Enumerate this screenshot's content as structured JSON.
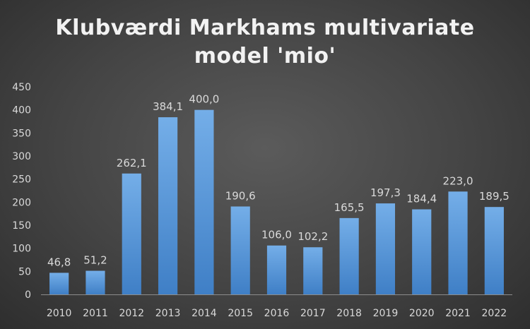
{
  "chart_data": {
    "type": "bar",
    "title_lines": [
      "Klubværdi Markhams multivariate",
      "model 'mio'"
    ],
    "categories": [
      "2010",
      "2011",
      "2012",
      "2013",
      "2014",
      "2015",
      "2016",
      "2017",
      "2018",
      "2019",
      "2020",
      "2021",
      "2022"
    ],
    "values": [
      46.8,
      51.2,
      262.1,
      384.1,
      400.0,
      190.6,
      106.0,
      102.2,
      165.5,
      197.3,
      184.4,
      223.0,
      189.5
    ],
    "data_labels": [
      "46,8",
      "51,2",
      "262,1",
      "384,1",
      "400,0",
      "190,6",
      "106,0",
      "102,2",
      "165,5",
      "197,3",
      "184,4",
      "223,0",
      "189,5"
    ],
    "y_ticks": [
      0,
      50,
      100,
      150,
      200,
      250,
      300,
      350,
      400,
      450
    ],
    "ylim": [
      0,
      450
    ],
    "grid": false,
    "legend": "none",
    "colors": {
      "bar_top": "#74aee8",
      "bar_bottom": "#3f7fc6",
      "text": "#d9d9d9",
      "title": "#f2f2f2"
    }
  }
}
